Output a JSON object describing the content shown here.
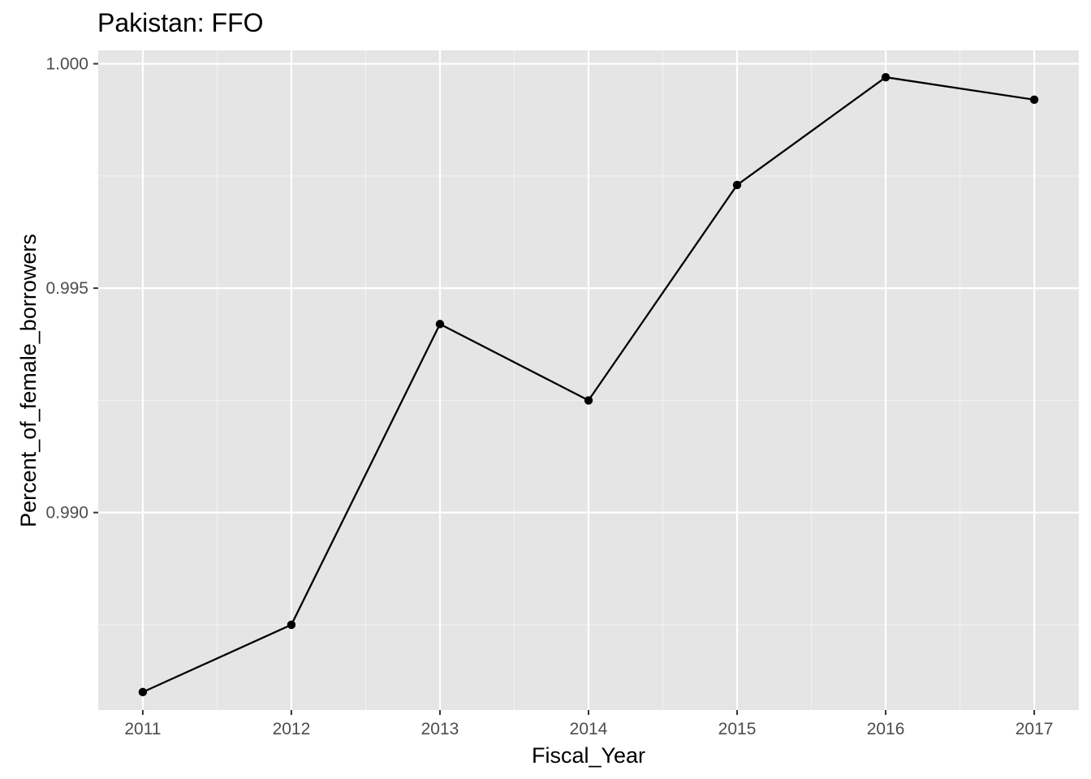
{
  "chart_data": {
    "type": "line",
    "title": "Pakistan:  FFO",
    "xlabel": "Fiscal_Year",
    "ylabel": "Percent_of_female_borrowers",
    "x": [
      2011,
      2012,
      2013,
      2014,
      2015,
      2016,
      2017
    ],
    "x_tick_labels": [
      "2011",
      "2012",
      "2013",
      "2014",
      "2015",
      "2016",
      "2017"
    ],
    "y_ticks": [
      0.99,
      0.995,
      1.0
    ],
    "y_tick_labels": [
      "0.990",
      "0.995",
      "1.000"
    ],
    "xlim": [
      2010.7,
      2017.3
    ],
    "ylim": [
      0.9856,
      1.0003
    ],
    "series": [
      {
        "values": [
          0.986,
          0.9875,
          0.9942,
          0.9925,
          0.9973,
          0.9997,
          0.9992
        ]
      }
    ],
    "grid": true,
    "legend": "none",
    "colors": {
      "panel_background": "#e5e5e5",
      "grid_major": "#ffffff",
      "grid_minor": "#f2f2f2",
      "line": "#000000",
      "point": "#000000",
      "tick_mark": "#333333"
    }
  }
}
